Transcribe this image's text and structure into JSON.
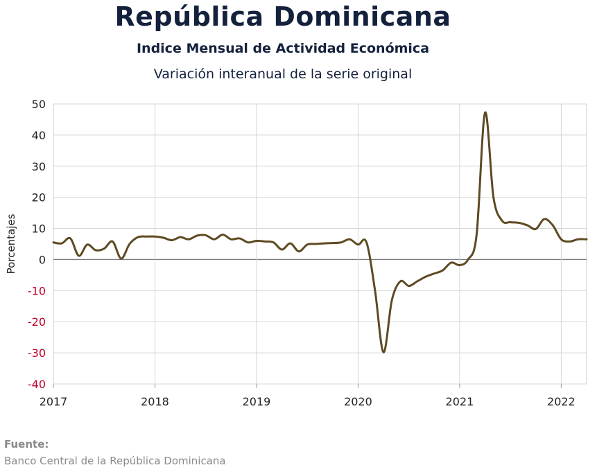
{
  "chart_data": {
    "type": "line",
    "title": "República Dominicana",
    "subtitle": "Indice Mensual de  Actividad Económica",
    "subtitle2": "Variación interanual de la serie original",
    "ylabel": "Porcentajes",
    "xlabel": "",
    "ylim": [
      -40,
      50
    ],
    "yticks": [
      50,
      40,
      30,
      20,
      10,
      0,
      -10,
      -20,
      -30,
      -40
    ],
    "xlim": [
      2017,
      2022.25
    ],
    "xticks": [
      2017,
      2018,
      2019,
      2020,
      2021,
      2022
    ],
    "xtick_labels": [
      "2017",
      "2018",
      "2019",
      "2020",
      "2021",
      "2022"
    ],
    "grid": true,
    "legend": "none",
    "negative_tick_color": "#c0002a",
    "line_color": "#5e4a22",
    "series": [
      {
        "x": [
          2017.0,
          2017.083,
          2017.167,
          2017.25,
          2017.333,
          2017.417,
          2017.5,
          2017.583,
          2017.667,
          2017.75,
          2017.833,
          2017.917,
          2018.0,
          2018.083,
          2018.167,
          2018.25,
          2018.333,
          2018.417,
          2018.5,
          2018.583,
          2018.667,
          2018.75,
          2018.833,
          2018.917,
          2019.0,
          2019.083,
          2019.167,
          2019.25,
          2019.333,
          2019.417,
          2019.5,
          2019.583,
          2019.667,
          2019.75,
          2019.833,
          2019.917,
          2020.0,
          2020.083,
          2020.167,
          2020.25,
          2020.333,
          2020.417,
          2020.5,
          2020.583,
          2020.667,
          2020.75,
          2020.833,
          2020.917,
          2021.0,
          2021.083,
          2021.167,
          2021.25,
          2021.333,
          2021.417,
          2021.5,
          2021.583,
          2021.667,
          2021.75,
          2021.833,
          2021.917,
          2022.0,
          2022.083,
          2022.167,
          2022.25
        ],
        "y": [
          5.5,
          5.2,
          6.8,
          1.2,
          4.8,
          3.0,
          3.5,
          5.8,
          0.3,
          5.0,
          7.2,
          7.4,
          7.4,
          7.0,
          6.2,
          7.2,
          6.5,
          7.7,
          7.8,
          6.5,
          8.0,
          6.5,
          6.8,
          5.5,
          6.0,
          5.8,
          5.5,
          3.2,
          5.2,
          2.6,
          4.8,
          5.0,
          5.2,
          5.3,
          5.5,
          6.5,
          4.8,
          5.5,
          -10.0,
          -29.8,
          -13.0,
          -7.0,
          -8.5,
          -7.0,
          -5.5,
          -4.5,
          -3.5,
          -1.0,
          -1.8,
          0.0,
          8.0,
          47.2,
          20.0,
          12.5,
          12.0,
          11.8,
          11.0,
          9.8,
          13.0,
          11.0,
          6.5,
          5.8,
          6.5,
          6.5
        ]
      }
    ]
  },
  "source": {
    "label": "Fuente:",
    "text": "Banco Central de la República Dominicana"
  }
}
